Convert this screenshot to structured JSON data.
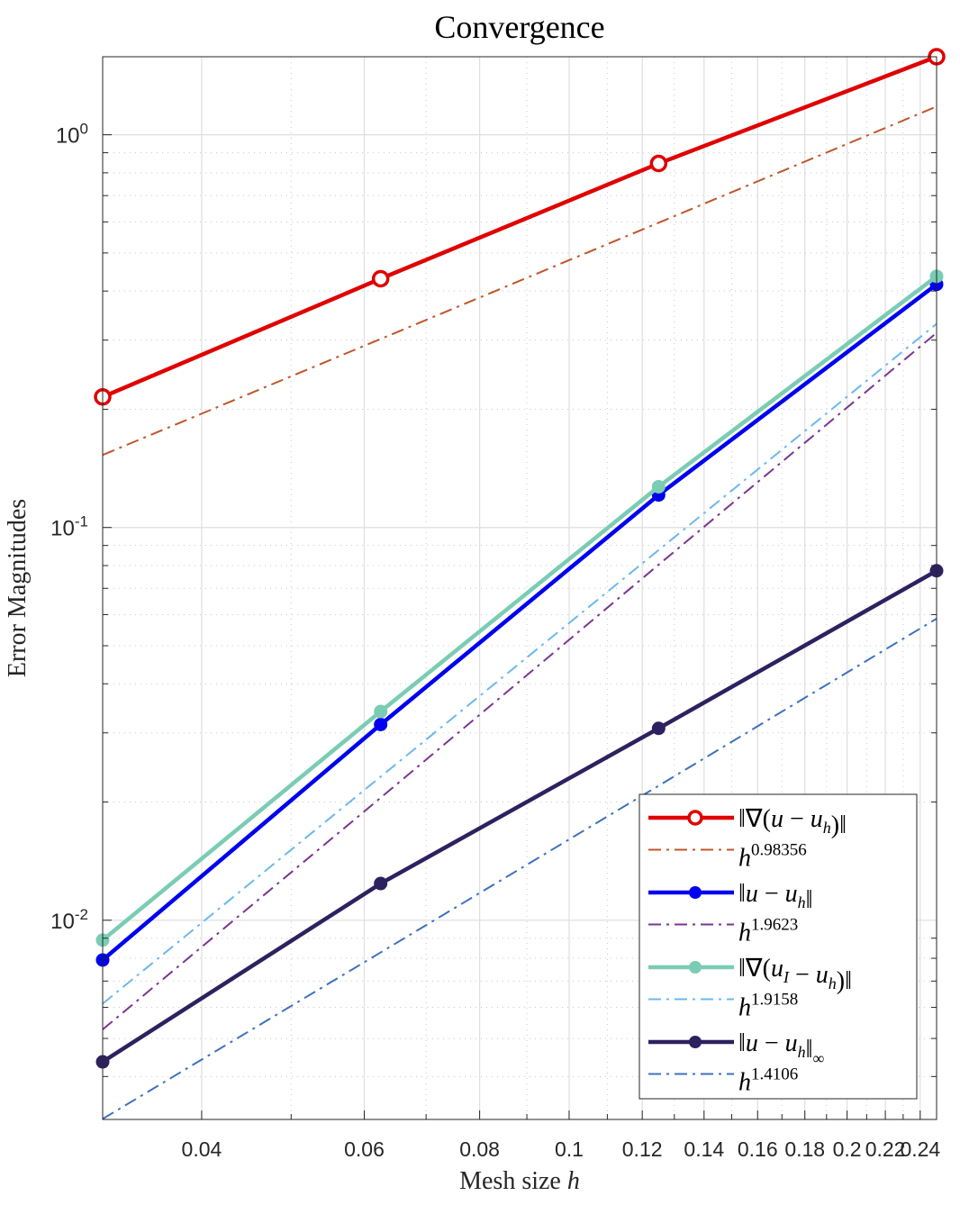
{
  "chart_data": {
    "type": "line",
    "title": "Convergence",
    "xlabel": "Mesh size h",
    "ylabel": "Error Magnitudes",
    "xscale": "log",
    "yscale": "log",
    "xlim": [
      0.03125,
      0.25
    ],
    "ylim": [
      0.00311,
      1.58
    ],
    "grid": true,
    "minor_grid": true,
    "legend_placement": "bottom-right",
    "x_ticks": [
      0.04,
      0.06,
      0.08,
      0.1,
      0.12,
      0.14,
      0.16,
      0.18,
      0.2,
      0.22,
      0.24
    ],
    "x_tick_labels": [
      "0.04",
      "0.06",
      "0.08",
      "0.1",
      "0.12",
      "0.14",
      "0.16",
      "0.18",
      "0.2",
      "0.22",
      "0.24"
    ],
    "y_ticks": [
      1,
      0.1,
      0.01
    ],
    "y_tick_labels": [
      {
        "base": "10",
        "exp": "0"
      },
      {
        "base": "10",
        "exp": "-1"
      },
      {
        "base": "10",
        "exp": "-2"
      }
    ],
    "x": [
      0.03125,
      0.0625,
      0.125,
      0.25
    ],
    "series": [
      {
        "name": "‖∇(u − u_h)‖",
        "kind": "data",
        "marker": "open-circle",
        "color": "#E00000",
        "values": [
          0.215,
          0.43,
          0.845,
          1.58
        ]
      },
      {
        "name": "h^0.98356",
        "kind": "fit",
        "color": "#C0562A",
        "values": [
          0.153,
          0.302,
          0.597,
          1.18
        ]
      },
      {
        "name": "‖u − u_h‖",
        "kind": "data",
        "marker": "filled-circle",
        "color": "#0000F0",
        "values": [
          0.00792,
          0.0315,
          0.121,
          0.416
        ]
      },
      {
        "name": "h^1.9623",
        "kind": "fit",
        "color": "#7A3590",
        "values": [
          0.00527,
          0.0205,
          0.0804,
          0.313
        ]
      },
      {
        "name": "‖∇(u_I − u_h)‖",
        "kind": "data",
        "marker": "filled-circle",
        "color": "#7ACCB4",
        "values": [
          0.0089,
          0.034,
          0.127,
          0.436
        ]
      },
      {
        "name": "h^1.9158",
        "kind": "fit",
        "color": "#6CB8EC",
        "values": [
          0.00613,
          0.0232,
          0.0876,
          0.33
        ]
      },
      {
        "name": "‖u − u_h‖_∞",
        "kind": "data",
        "marker": "filled-circle",
        "color": "#2E2160",
        "values": [
          0.00436,
          0.0124,
          0.0308,
          0.0776
        ]
      },
      {
        "name": "h^1.4106",
        "kind": "fit",
        "color": "#3C72BC",
        "values": [
          0.00312,
          0.00828,
          0.022,
          0.0586
        ]
      }
    ]
  }
}
